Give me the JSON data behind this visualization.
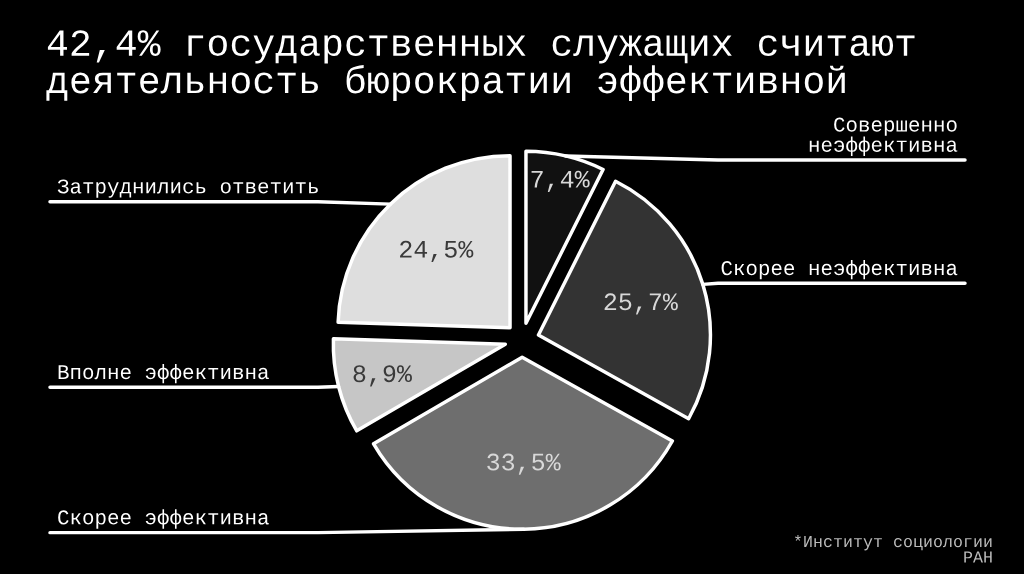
{
  "chart_data": {
    "type": "pie",
    "title": "42,4% государственных служащих считают деятельность бюрократии эффективной",
    "categories": [
      "Совершенно неэффективна",
      "Скорее неэффективна",
      "Скорее эффективна",
      "Вполне эффективна",
      "Затруднились ответить"
    ],
    "values": [
      7.4,
      25.7,
      33.5,
      8.9,
      24.5
    ],
    "colors": [
      "#111111",
      "#333333",
      "#6e6e6e",
      "#c6c6c6",
      "#dedede"
    ],
    "value_labels": [
      "7,4%",
      "25,7%",
      "33,5%",
      "8,9%",
      "24,5%"
    ],
    "annotations": [
      "*Институт социологии РАН"
    ]
  }
}
